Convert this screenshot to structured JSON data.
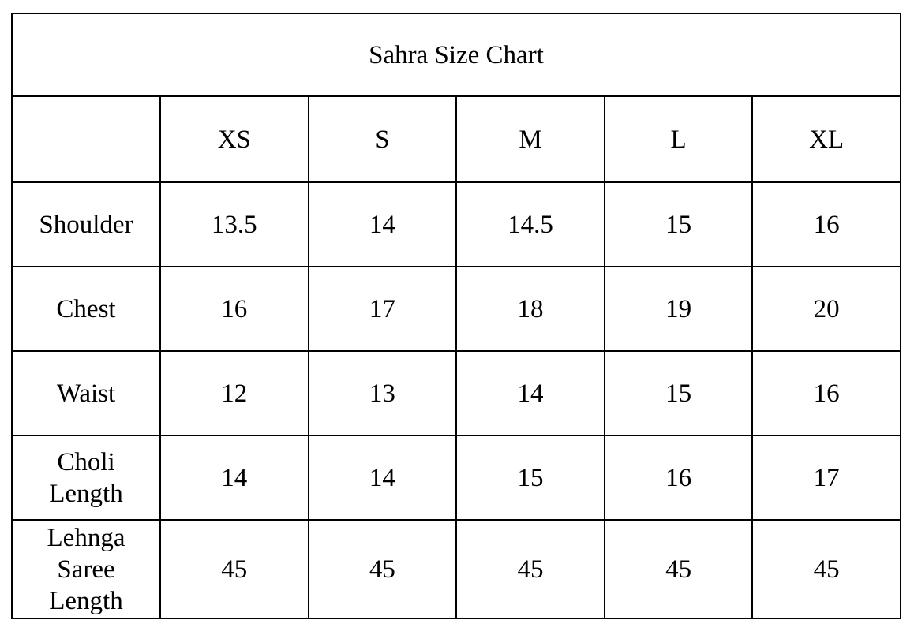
{
  "title": "Sahra Size Chart",
  "sizes": [
    "XS",
    "S",
    "M",
    "L",
    "XL"
  ],
  "rows": [
    {
      "label": "Shoulder",
      "values": [
        "13.5",
        "14",
        "14.5",
        "15",
        "16"
      ]
    },
    {
      "label": "Chest",
      "values": [
        "16",
        "17",
        "18",
        "19",
        "20"
      ]
    },
    {
      "label": "Waist",
      "values": [
        "12",
        "13",
        "14",
        "15",
        "16"
      ]
    },
    {
      "label": "Choli\nLength",
      "values": [
        "14",
        "14",
        "15",
        "16",
        "17"
      ]
    },
    {
      "label": "Lehnga\nSaree\nLength",
      "values": [
        "45",
        "45",
        "45",
        "45",
        "45"
      ]
    }
  ]
}
